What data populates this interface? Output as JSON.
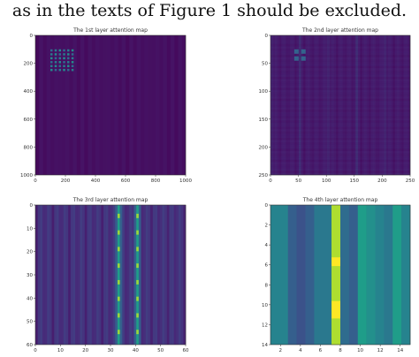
{
  "document": {
    "text_line": "as in the texts of Figure 1 should be excluded."
  },
  "colors": {
    "viridis_dark": "#440154",
    "viridis_mid": "#21918c",
    "viridis_green": "#35b779",
    "viridis_yellow": "#fde725",
    "axis": "#333333"
  },
  "chart_data": [
    {
      "type": "heatmap",
      "title": "The 1st layer attention map",
      "x_ticks": [
        "0",
        "200",
        "400",
        "600",
        "800",
        "1000"
      ],
      "y_ticks": [
        "0",
        "200",
        "400",
        "600",
        "800",
        "1000"
      ],
      "size": 1024,
      "note_values": "mostly uniform low attention with faint bright cluster near tokens 100–250"
    },
    {
      "type": "heatmap",
      "title": "The 2nd layer attention map",
      "x_ticks": [
        "0",
        "50",
        "100",
        "150",
        "200",
        "250"
      ],
      "y_ticks": [
        "0",
        "50",
        "100",
        "150",
        "200",
        "250"
      ],
      "size": 256
    },
    {
      "type": "heatmap",
      "title": "The 3rd layer attention map",
      "x_ticks": [
        "0",
        "10",
        "20",
        "30",
        "40",
        "50",
        "60"
      ],
      "y_ticks": [
        "0",
        "10",
        "20",
        "30",
        "40",
        "50",
        "60"
      ],
      "size": 64,
      "bright_columns": [
        35,
        43
      ]
    },
    {
      "type": "heatmap",
      "title": "The 4th layer attention map",
      "x_ticks": [
        "2",
        "4",
        "6",
        "8",
        "10",
        "12",
        "14"
      ],
      "y_ticks": [
        "0",
        "2",
        "4",
        "6",
        "8",
        "10",
        "12",
        "14"
      ],
      "size": 16,
      "column_values": [
        0.45,
        0.45,
        0.3,
        0.25,
        0.3,
        0.4,
        0.4,
        0.9,
        0.35,
        0.3,
        0.55,
        0.5,
        0.45,
        0.4,
        0.55,
        0.45
      ]
    }
  ]
}
